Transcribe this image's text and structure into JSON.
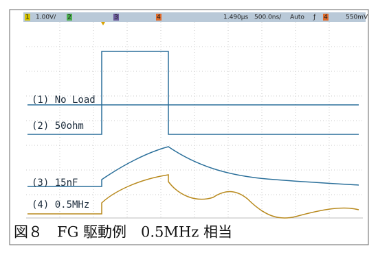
{
  "status_bar": {
    "ch1": "1",
    "ch1_scale": "1.00V/",
    "ch2": "2",
    "ch3": "3",
    "ch4": "4",
    "delay": "1.490µs",
    "timebase": "500.0ns/",
    "mode": "Auto",
    "slope": "ƒ",
    "trig_ch": "4",
    "trig_level": "550mV"
  },
  "traces": [
    {
      "label": "(1)  No Load"
    },
    {
      "label": "(2)  50ohm"
    },
    {
      "label": "(3)  15nF"
    },
    {
      "label": "(4)  0.5MHz"
    }
  ],
  "caption": "図８　FG 駆動例　0.5MHz 相当"
}
